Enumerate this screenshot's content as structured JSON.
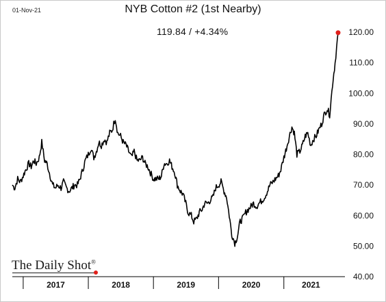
{
  "header": {
    "date": "01-Nov-21",
    "title": "NYB Cotton #2 (1st Nearby)",
    "readout": "119.84  /  +4.34%"
  },
  "branding": {
    "name": "The Daily Shot",
    "mark": "®"
  },
  "colors": {
    "line": "#000000",
    "marker": "#e0201b",
    "axis": "#000000",
    "frame": "#c8c8c8"
  },
  "chart_data": {
    "type": "line",
    "title": "NYB Cotton #2 (1st Nearby)",
    "xlabel": "",
    "ylabel": "",
    "ylim": [
      40,
      120
    ],
    "y_ticks": [
      40,
      50,
      60,
      70,
      80,
      90,
      100,
      110,
      120
    ],
    "y_tick_labels": [
      "40.00",
      "50.00",
      "60.00",
      "70.00",
      "80.00",
      "90.00",
      "100.00",
      "110.00",
      "120.00"
    ],
    "y_axis_side": "right",
    "x_ticks": [
      "2017",
      "2018",
      "2019",
      "2020",
      "2021"
    ],
    "grid": false,
    "last_value": 119.84,
    "last_change_pct": 4.34,
    "series": [
      {
        "x": [
          "2016-11-01",
          "2016-11-15",
          "2016-12-01",
          "2016-12-15",
          "2017-01-01",
          "2017-01-15",
          "2017-02-01",
          "2017-02-15",
          "2017-03-01",
          "2017-03-15",
          "2017-04-01",
          "2017-04-15",
          "2017-05-01",
          "2017-05-15",
          "2017-06-01",
          "2017-06-15",
          "2017-07-01",
          "2017-07-15",
          "2017-08-01",
          "2017-08-15",
          "2017-09-01",
          "2017-09-15",
          "2017-10-01",
          "2017-10-15",
          "2017-11-01",
          "2017-11-15",
          "2017-12-01",
          "2017-12-15",
          "2018-01-01",
          "2018-01-15",
          "2018-02-01",
          "2018-02-15",
          "2018-03-01",
          "2018-03-15",
          "2018-04-01",
          "2018-04-15",
          "2018-05-01",
          "2018-05-15",
          "2018-06-01",
          "2018-06-15",
          "2018-07-01",
          "2018-07-15",
          "2018-08-01",
          "2018-08-15",
          "2018-09-01",
          "2018-09-15",
          "2018-10-01",
          "2018-10-15",
          "2018-11-01",
          "2018-11-15",
          "2018-12-01",
          "2018-12-15",
          "2019-01-01",
          "2019-01-15",
          "2019-02-01",
          "2019-02-15",
          "2019-03-01",
          "2019-03-15",
          "2019-04-01",
          "2019-04-15",
          "2019-05-01",
          "2019-05-15",
          "2019-06-01",
          "2019-06-15",
          "2019-07-01",
          "2019-07-15",
          "2019-08-01",
          "2019-08-15",
          "2019-09-01",
          "2019-09-15",
          "2019-10-01",
          "2019-10-15",
          "2019-11-01",
          "2019-11-15",
          "2019-12-01",
          "2019-12-15",
          "2020-01-01",
          "2020-01-15",
          "2020-02-01",
          "2020-02-15",
          "2020-03-01",
          "2020-03-15",
          "2020-04-01",
          "2020-04-15",
          "2020-05-01",
          "2020-05-15",
          "2020-06-01",
          "2020-06-15",
          "2020-07-01",
          "2020-07-15",
          "2020-08-01",
          "2020-08-15",
          "2020-09-01",
          "2020-09-15",
          "2020-10-01",
          "2020-10-15",
          "2020-11-01",
          "2020-11-15",
          "2020-12-01",
          "2020-12-15",
          "2021-01-01",
          "2021-01-15",
          "2021-02-01",
          "2021-02-15",
          "2021-03-01",
          "2021-03-15",
          "2021-04-01",
          "2021-04-15",
          "2021-05-01",
          "2021-05-15",
          "2021-06-01",
          "2021-06-15",
          "2021-07-01",
          "2021-07-15",
          "2021-08-01",
          "2021-08-15",
          "2021-09-01",
          "2021-09-15",
          "2021-10-01",
          "2021-10-15",
          "2021-11-01"
        ],
        "values": [
          70,
          69,
          72,
          71,
          73,
          75,
          77,
          76,
          78,
          77,
          79,
          84,
          78,
          77,
          73,
          70,
          69,
          70,
          69,
          71,
          69,
          68,
          69,
          70,
          70,
          72,
          75,
          78,
          80,
          82,
          79,
          81,
          84,
          83,
          85,
          84,
          87,
          88,
          92,
          87,
          86,
          84,
          83,
          81,
          79,
          81,
          78,
          78,
          79,
          77,
          76,
          74,
          72,
          72,
          72,
          73,
          77,
          77,
          78,
          76,
          74,
          70,
          68,
          67,
          64,
          61,
          60,
          58,
          59,
          61,
          62,
          64,
          64,
          65,
          66,
          69,
          70,
          71,
          68,
          66,
          60,
          54,
          51,
          53,
          58,
          59,
          61,
          62,
          63,
          64,
          63,
          64,
          65,
          66,
          68,
          70,
          71,
          72,
          73,
          75,
          79,
          82,
          86,
          89,
          87,
          80,
          81,
          83,
          86,
          87,
          83,
          85,
          86,
          88,
          90,
          93,
          95,
          93,
          103,
          110,
          119.84
        ]
      }
    ]
  }
}
